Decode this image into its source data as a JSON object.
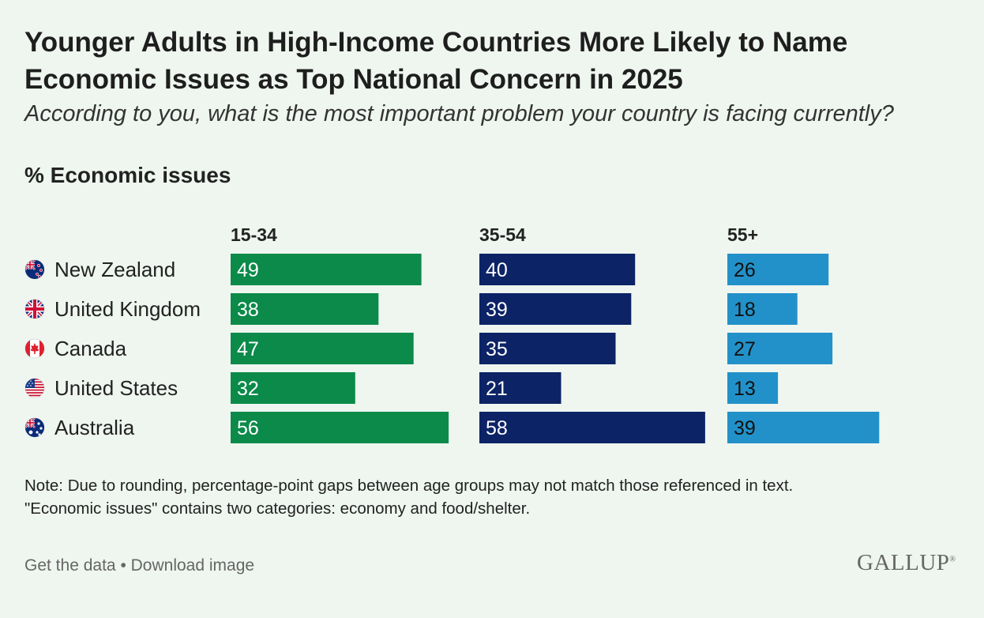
{
  "title": "Younger Adults in High-Income Countries More Likely to Name Economic Issues as Top National Concern in 2025",
  "subtitle": "According to you, what is the most important problem your country is facing currently?",
  "metric_label": "% Economic issues",
  "note_line1": "Note: Due to rounding, percentage-point gaps between age groups may not match those referenced in text.",
  "note_line2": "\"Economic issues\" contains two categories: economy and food/shelter.",
  "footer": {
    "get_data": "Get the data",
    "separator": "•",
    "download": "Download image"
  },
  "brand": "GALLUP",
  "brand_mark": "®",
  "colors": {
    "age_15_34": "#0b8a4a",
    "age_35_54": "#0c2366",
    "age_55_plus": "#2391c9"
  },
  "chart_data": {
    "type": "bar",
    "orientation": "horizontal",
    "layout": "small-multiples",
    "categories": [
      "New Zealand",
      "United Kingdom",
      "Canada",
      "United States",
      "Australia"
    ],
    "flag_icons": [
      "new-zealand-flag-icon",
      "united-kingdom-flag-icon",
      "canada-flag-icon",
      "united-states-flag-icon",
      "australia-flag-icon"
    ],
    "series": [
      {
        "name": "15-34",
        "color": "#0b8a4a",
        "label_color": "#ffffff",
        "values": [
          49,
          38,
          47,
          32,
          56
        ]
      },
      {
        "name": "35-54",
        "color": "#0c2366",
        "label_color": "#ffffff",
        "values": [
          40,
          39,
          35,
          21,
          58
        ]
      },
      {
        "name": "55+",
        "color": "#2391c9",
        "label_color": "#111111",
        "values": [
          26,
          18,
          27,
          13,
          39
        ]
      }
    ],
    "xlim": [
      0,
      60
    ],
    "grid": false,
    "data_labels": true
  }
}
